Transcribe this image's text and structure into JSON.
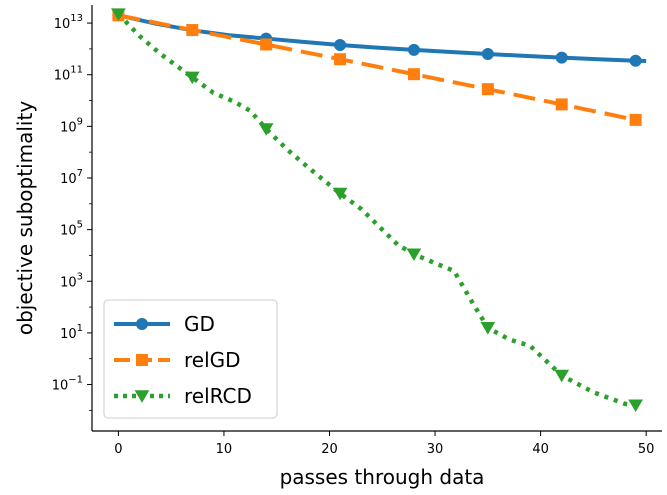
{
  "chart_data": {
    "type": "line",
    "title": "",
    "xlabel": "passes through data",
    "ylabel": "objective suboptimality",
    "xscale": "linear",
    "yscale": "log",
    "xlim": [
      -2.5,
      51.5
    ],
    "ylim_exponent": [
      -2.8,
      13.7
    ],
    "grid": false,
    "legend_position": "lower-left",
    "x_ticks": [
      0,
      10,
      20,
      30,
      40,
      50
    ],
    "x_tick_labels": [
      "0",
      "10",
      "20",
      "30",
      "40",
      "50"
    ],
    "y_tick_exponents": [
      -1,
      1,
      3,
      5,
      7,
      9,
      11,
      13
    ],
    "y_tick_labels": [
      {
        "base": "10",
        "exp": "−1"
      },
      {
        "base": "10",
        "exp": "1"
      },
      {
        "base": "10",
        "exp": "3"
      },
      {
        "base": "10",
        "exp": "5"
      },
      {
        "base": "10",
        "exp": "7"
      },
      {
        "base": "10",
        "exp": "9"
      },
      {
        "base": "10",
        "exp": "11"
      },
      {
        "base": "10",
        "exp": "13"
      }
    ],
    "series": [
      {
        "name": "GD",
        "color": "#1f77b4",
        "line_style": "solid",
        "marker": "circle",
        "x": [
          0,
          3.5,
          7,
          10.5,
          14,
          17.5,
          21,
          24.5,
          28,
          31.5,
          35,
          38.5,
          42,
          45.5,
          49,
          50
        ],
        "log10_y": [
          13.3,
          12.98,
          12.72,
          12.53,
          12.4,
          12.27,
          12.15,
          12.05,
          11.96,
          11.88,
          11.8,
          11.73,
          11.66,
          11.6,
          11.54,
          11.53
        ],
        "marker_x": [
          0,
          7,
          14,
          21,
          28,
          35,
          42,
          49
        ]
      },
      {
        "name": "relGD",
        "color": "#ff7f0e",
        "line_style": "dashed",
        "marker": "square",
        "x": [
          0,
          7,
          14,
          21,
          28,
          35,
          42,
          49
        ],
        "log10_y": [
          13.3,
          12.73,
          12.17,
          11.6,
          11.02,
          10.44,
          9.85,
          9.25
        ],
        "marker_x": [
          0,
          7,
          14,
          21,
          28,
          35,
          42,
          49
        ]
      },
      {
        "name": "relRCD",
        "color": "#2ca02c",
        "line_style": "dotted",
        "marker": "triangle-down",
        "x": [
          0,
          2,
          4,
          7,
          9,
          11,
          12.5,
          14,
          16,
          18,
          21,
          23,
          25,
          26.5,
          28,
          30,
          31.8,
          33.5,
          35,
          37,
          39,
          42,
          45,
          48,
          49
        ],
        "log10_y": [
          13.35,
          12.5,
          11.8,
          10.9,
          10.3,
          9.95,
          9.6,
          8.9,
          8.1,
          7.4,
          6.4,
          5.8,
          5.0,
          4.4,
          4.05,
          3.7,
          3.4,
          2.2,
          1.2,
          0.75,
          0.5,
          -0.65,
          -1.3,
          -1.75,
          -1.8
        ],
        "marker_x": [
          0,
          7,
          14,
          21,
          28,
          35,
          42,
          49
        ],
        "marker_log10_y": [
          13.35,
          10.9,
          8.9,
          6.4,
          4.05,
          1.2,
          -0.65,
          -1.8
        ]
      }
    ]
  }
}
